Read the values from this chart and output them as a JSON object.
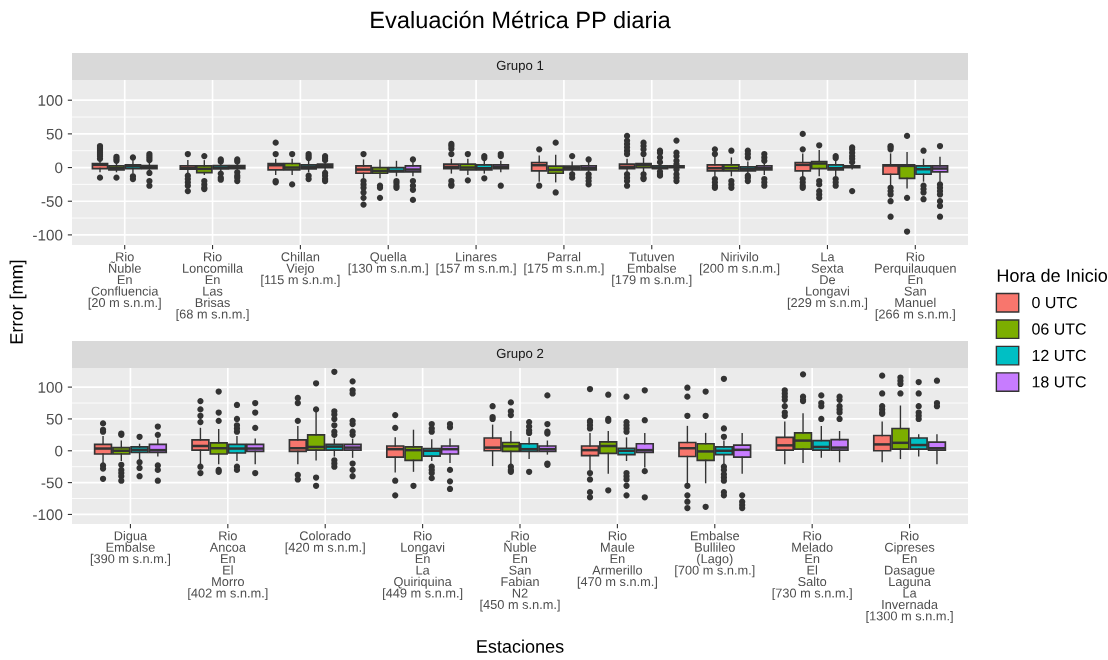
{
  "chart_data": [
    {
      "type": "box",
      "title": "Evaluación Métrica PP diaria",
      "subtitle": "Grupo 1",
      "ylabel": "Error [mm]",
      "legend_title": "Hora de Inicio",
      "legend": "right",
      "grid": true,
      "ylim": [
        -115,
        130
      ],
      "yticks": [
        -100,
        -50,
        0,
        50,
        100
      ],
      "categories": [
        "Rio\nÑuble\nEn\nConfluencia\n[20 m s.n.m.]",
        "Rio\nLoncomilla\nEn\nLas\nBrisas\n[68 m s.n.m.]",
        "Chillan\nViejo\n[115 m s.n.m.]",
        "Quella\n[130 m s.n.m.]",
        "Linares\n[157 m s.n.m.]",
        "Parral\n[175 m s.n.m.]",
        "Tutuven\nEmbalse\n[179 m s.n.m.]",
        "Nirivilo\n[200 m s.n.m.]",
        "La\nSexta\nDe\nLongavi\n[229 m s.n.m.]",
        "Rio\nPerquilauquen\nEn\nSan\nManuel\n[266 m s.n.m.]"
      ],
      "series": [
        {
          "name": "0 UTC",
          "color": "#f8766d",
          "boxes": [
            {
              "low": -6,
              "q1": -1.5,
              "median": 4,
              "q3": 6,
              "high": 11,
              "outliers": [
                13,
                17,
                20,
                23,
                26,
                29,
                32,
                -15
              ]
            },
            {
              "low": -7,
              "q1": -2.5,
              "median": -1,
              "q3": 2.5,
              "high": 10,
              "outliers": [
                20,
                -12,
                -17,
                -22,
                -27,
                -35
              ]
            },
            {
              "low": -10,
              "q1": -3.5,
              "median": 3.5,
              "q3": 6,
              "high": 12,
              "outliers": [
                37,
                20,
                -20,
                -22
              ]
            },
            {
              "low": -15,
              "q1": -8.5,
              "median": -3,
              "q3": 2.5,
              "high": 11,
              "outliers": [
                20,
                -20,
                -25,
                -30,
                -37,
                -45,
                -55
              ]
            },
            {
              "low": -8,
              "q1": -1.5,
              "median": 1,
              "q3": 5,
              "high": 12,
              "outliers": [
                35,
                32,
                28,
                20,
                -20,
                -25,
                -27
              ]
            },
            {
              "low": -20,
              "q1": -5,
              "median": 3.5,
              "q3": 7.5,
              "high": 17,
              "outliers": [
                27,
                -27
              ]
            },
            {
              "low": -6,
              "q1": -1.5,
              "median": 1,
              "q3": 5,
              "high": 12,
              "outliers": [
                47,
                40,
                35,
                30,
                25,
                20,
                -10,
                -15,
                -20,
                -27
              ]
            },
            {
              "low": -12,
              "q1": -5,
              "median": -1,
              "q3": 4,
              "high": 16,
              "outliers": [
                27,
                20,
                -17,
                -22,
                -27,
                -30
              ]
            },
            {
              "low": -14,
              "q1": -5,
              "median": 4,
              "q3": 7.5,
              "high": 20,
              "outliers": [
                50,
                27,
                -17,
                -22,
                -27,
                -30
              ]
            },
            {
              "low": -27,
              "q1": -10,
              "median": 3,
              "q3": 4,
              "high": 20,
              "outliers": [
                32,
                30,
                27,
                -30,
                -35,
                -40,
                -50,
                -73
              ]
            }
          ]
        },
        {
          "name": "06 UTC",
          "color": "#7cae00",
          "boxes": [
            {
              "low": -6,
              "q1": -3.5,
              "median": -1,
              "q3": 2.5,
              "high": 6,
              "outliers": [
                10,
                13,
                16,
                -15
              ]
            },
            {
              "low": -10,
              "q1": -7.5,
              "median": -2,
              "q3": 2.5,
              "high": 10,
              "outliers": [
                17,
                -20,
                -25,
                -30,
                -32
              ]
            },
            {
              "low": -10,
              "q1": -3.5,
              "median": 0,
              "q3": 6,
              "high": 12,
              "outliers": [
                20,
                -25
              ]
            },
            {
              "low": -15,
              "q1": -8.5,
              "median": -5,
              "q3": 0,
              "high": 11,
              "outliers": [
                -27,
                -30,
                -45
              ]
            },
            {
              "low": -10,
              "q1": -3.5,
              "median": 0,
              "q3": 5,
              "high": 12,
              "outliers": [
                20,
                -19
              ]
            },
            {
              "low": -21,
              "q1": -8.5,
              "median": -3.5,
              "q3": 2,
              "high": 18,
              "outliers": [
                37,
                -37
              ]
            },
            {
              "low": -6,
              "q1": 0,
              "median": 3.5,
              "q3": 6,
              "high": 14,
              "outliers": [
                37,
                32,
                27,
                20,
                -10,
                -15,
                -17
              ]
            },
            {
              "low": -12,
              "q1": -5,
              "median": -1,
              "q3": 4,
              "high": 14,
              "outliers": [
                25,
                -20,
                -25,
                -30
              ]
            },
            {
              "low": -12,
              "q1": -1.5,
              "median": 6,
              "q3": 9,
              "high": 25,
              "outliers": [
                33,
                -20,
                -25,
                -35,
                -40,
                -45
              ]
            },
            {
              "low": -30,
              "q1": -16,
              "median": 2.5,
              "q3": 4,
              "high": 22,
              "outliers": [
                47,
                -45,
                -95
              ]
            }
          ]
        },
        {
          "name": "12 UTC",
          "color": "#00bfc4",
          "boxes": [
            {
              "low": -8,
              "q1": -1.5,
              "median": 2,
              "q3": 4,
              "high": 10,
              "outliers": [
                15,
                -13,
                -17
              ]
            },
            {
              "low": -6,
              "q1": -2,
              "median": 0,
              "q3": 3,
              "high": 6,
              "outliers": [
                12,
                9,
                -9,
                -15,
                -18
              ]
            },
            {
              "low": -6,
              "q1": -2,
              "median": 1,
              "q3": 4,
              "high": 10,
              "outliers": [
                20,
                17,
                14,
                -12,
                -17
              ]
            },
            {
              "low": -12,
              "q1": -6.5,
              "median": -5,
              "q3": 0,
              "high": 9,
              "outliers": [
                -20,
                -23,
                -27,
                -30
              ]
            },
            {
              "low": -8,
              "q1": -3.5,
              "median": -1,
              "q3": 4,
              "high": 10,
              "outliers": [
                17,
                14,
                -16
              ]
            },
            {
              "low": -7,
              "q1": -3.5,
              "median": -1,
              "q3": 2,
              "high": 8,
              "outliers": [
                17,
                -10,
                -15
              ]
            },
            {
              "low": -4,
              "q1": -1.5,
              "median": 0,
              "q3": 2.5,
              "high": 5,
              "outliers": [
                25,
                22,
                15,
                8,
                -6,
                -10,
                -12
              ]
            },
            {
              "low": -10,
              "q1": -5,
              "median": -2.5,
              "q3": 1,
              "high": 8,
              "outliers": [
                25,
                20,
                15,
                -12,
                -15,
                -20
              ]
            },
            {
              "low": -12,
              "q1": -3.5,
              "median": -1,
              "q3": 4,
              "high": 10,
              "outliers": [
                17,
                14,
                -17,
                -22,
                -27
              ]
            },
            {
              "low": -20,
              "q1": -10,
              "median": -2.5,
              "q3": 2.5,
              "high": 12,
              "outliers": [
                25,
                -27,
                -32,
                -37,
                -47
              ]
            }
          ]
        },
        {
          "name": "18 UTC",
          "color": "#c77cff",
          "boxes": [
            {
              "low": -4,
              "q1": -1.5,
              "median": 1,
              "q3": 3,
              "high": 6,
              "outliers": [
                20,
                17,
                14,
                11,
                -8,
                -20,
                -27
              ]
            },
            {
              "low": -4,
              "q1": -1.5,
              "median": 1,
              "q3": 3,
              "high": 6,
              "outliers": [
                12,
                9,
                -7,
                -12,
                -15,
                -20
              ]
            },
            {
              "low": -5,
              "q1": 0,
              "median": 2,
              "q3": 5,
              "high": 9,
              "outliers": [
                17,
                14,
                11,
                -8,
                -12,
                -17,
                -20
              ]
            },
            {
              "low": -12,
              "q1": -6.5,
              "median": -3,
              "q3": 2.5,
              "high": 8,
              "outliers": [
                12,
                -20,
                -27,
                -33,
                -48
              ]
            },
            {
              "low": -6,
              "q1": -1.5,
              "median": 1,
              "q3": 4,
              "high": 9,
              "outliers": [
                20,
                17,
                -27
              ]
            },
            {
              "low": -8,
              "q1": -3.5,
              "median": -1,
              "q3": 2.5,
              "high": 8,
              "outliers": [
                12,
                -10,
                -15,
                -20,
                -25
              ]
            },
            {
              "low": -2,
              "q1": 0,
              "median": 1.5,
              "q3": 2.5,
              "high": 3,
              "outliers": [
                40,
                22,
                17,
                10,
                5,
                -3,
                -10,
                -15,
                -20
              ]
            },
            {
              "low": -10,
              "q1": -3.5,
              "median": -1,
              "q3": 2.5,
              "high": 8,
              "outliers": [
                20,
                15,
                10,
                -17,
                -22,
                -27
              ]
            },
            {
              "low": -2,
              "q1": 0,
              "median": 1.5,
              "q3": 2.5,
              "high": 4,
              "outliers": [
                30,
                27,
                22,
                17,
                13,
                8,
                -35
              ]
            },
            {
              "low": -20,
              "q1": -6.5,
              "median": -1.5,
              "q3": 2.5,
              "high": 15,
              "outliers": [
                32,
                -25,
                -30,
                -35,
                -40,
                -50,
                -57,
                -73
              ]
            }
          ]
        }
      ]
    },
    {
      "type": "box",
      "subtitle": "Grupo 2",
      "xlabel": "Estaciones",
      "grid": true,
      "ylim": [
        -115,
        130
      ],
      "yticks": [
        -100,
        -50,
        0,
        50,
        100
      ],
      "categories": [
        "Digua\nEmbalse\n[390 m s.n.m.]",
        "Rio\nAncoa\nEn\nEl\nMorro\n[402 m s.n.m.]",
        "Colorado\n[420 m s.n.m.]",
        "Rio\nLongavi\nEn\nLa\nQuiriquina\n[449 m s.n.m.]",
        "Rio\nÑuble\nEn\nSan\nFabian\nN2\n[450 m s.n.m.]",
        "Rio\nMaule\nEn\nArmerillo\n[470 m s.n.m.]",
        "Embalse\nBullileo\n(Lago)\n[700 m s.n.m.]",
        "Rio\nMelado\nEn\nEl\nSalto\n[730 m s.n.m.]",
        "Rio\nCipreses\nEn\nDasague\nLaguna\nLa\nInvernada\n[1300 m s.n.m.]"
      ],
      "series": [
        {
          "color": "#f8766d",
          "boxes": [
            {
              "low": -18,
              "q1": -5,
              "median": 3.5,
              "q3": 10,
              "high": 22,
              "outliers": [
                43,
                33,
                30,
                -23,
                -28,
                -44
              ]
            },
            {
              "low": -20,
              "q1": 1,
              "median": 7.5,
              "q3": 17,
              "high": 35,
              "outliers": [
                78,
                65,
                55,
                45,
                -25,
                -35
              ]
            },
            {
              "low": -20,
              "q1": -1,
              "median": 4,
              "q3": 17,
              "high": 38,
              "outliers": [
                83,
                75,
                47,
                -38,
                -45
              ]
            },
            {
              "low": -33,
              "q1": -10,
              "median": 2.5,
              "q3": 7.5,
              "high": 20,
              "outliers": [
                56,
                36,
                -47,
                -70
              ]
            },
            {
              "low": -23,
              "q1": 0,
              "median": 5,
              "q3": 20,
              "high": 40,
              "outliers": [
                70,
                53,
                50
              ]
            },
            {
              "low": -30,
              "q1": -7.5,
              "median": 1,
              "q3": 7.5,
              "high": 27,
              "outliers": [
                97,
                47,
                45,
                40,
                35,
                -35,
                -45,
                -65,
                -73
              ]
            },
            {
              "low": -50,
              "q1": -9,
              "median": 4,
              "q3": 13,
              "high": 38,
              "outliers": [
                99,
                85,
                55,
                -55,
                -70,
                -80,
                -90
              ]
            },
            {
              "low": -20,
              "q1": 1,
              "median": 8.5,
              "q3": 21,
              "high": 45,
              "outliers": [
                95,
                90,
                85,
                80,
                70,
                60,
                55
              ]
            },
            {
              "low": -17,
              "q1": 0,
              "median": 10,
              "q3": 24,
              "high": 45,
              "outliers": [
                118,
                90,
                70,
                65,
                60,
                58
              ]
            }
          ]
        },
        {
          "color": "#7cae00",
          "boxes": [
            {
              "low": -15,
              "q1": -5,
              "median": 0,
              "q3": 5,
              "high": 15,
              "outliers": [
                27,
                25,
                -22,
                -30,
                -35,
                -40,
                -47
              ]
            },
            {
              "low": -20,
              "q1": -5,
              "median": 4,
              "q3": 12.5,
              "high": 33,
              "outliers": [
                93,
                60,
                47,
                -30,
                -33
              ]
            },
            {
              "low": -14,
              "q1": 1,
              "median": 6,
              "q3": 25,
              "high": 60,
              "outliers": [
                106,
                65,
                -42,
                -55
              ]
            },
            {
              "low": -32,
              "q1": -15,
              "median": 1,
              "q3": 6,
              "high": 32,
              "outliers": [
                -55
              ]
            },
            {
              "low": -20,
              "q1": -1,
              "median": 7,
              "q3": 13,
              "high": 30,
              "outliers": [
                76,
                62,
                56,
                -25,
                -30,
                -33
              ]
            },
            {
              "low": -35,
              "q1": -4,
              "median": 7.5,
              "q3": 14,
              "high": 30,
              "outliers": [
                88,
                50,
                47,
                -62
              ]
            },
            {
              "low": -50,
              "q1": -15,
              "median": -1,
              "q3": 11,
              "high": 27,
              "outliers": [
                93,
                55,
                -88
              ]
            },
            {
              "low": -18,
              "q1": 2.5,
              "median": 16,
              "q3": 28,
              "high": 58,
              "outliers": [
                120,
                85,
                80,
                78
              ]
            },
            {
              "low": -12,
              "q1": 2.5,
              "median": 12.5,
              "q3": 35,
              "high": 70,
              "outliers": [
                115,
                110,
                105,
                90
              ]
            }
          ]
        },
        {
          "color": "#00bfc4",
          "boxes": [
            {
              "low": -12,
              "q1": -2.5,
              "median": 1.5,
              "q3": 6,
              "high": 10,
              "outliers": [
                22,
                -18,
                -27,
                -40
              ]
            },
            {
              "low": -15,
              "q1": -3.5,
              "median": 3.5,
              "q3": 10,
              "high": 22,
              "outliers": [
                72,
                50,
                40,
                35,
                30,
                -25,
                -30
              ]
            },
            {
              "low": -8,
              "q1": 1,
              "median": 6.5,
              "q3": 10,
              "high": 18,
              "outliers": [
                124,
                62,
                57,
                50,
                40,
                30,
                25,
                -15,
                -20,
                -25
              ]
            },
            {
              "low": -15,
              "q1": -8.5,
              "median": 0,
              "q3": 3.5,
              "high": 17,
              "outliers": [
                42,
                35,
                30,
                -25,
                -30,
                -35,
                -43
              ]
            },
            {
              "low": -12,
              "q1": -1,
              "median": 2.5,
              "q3": 11,
              "high": 20,
              "outliers": [
                45,
                38,
                32,
                28,
                -33
              ]
            },
            {
              "low": -15,
              "q1": -6,
              "median": 0,
              "q3": 4,
              "high": 20,
              "outliers": [
                85,
                45,
                40,
                35,
                30,
                -35,
                -40,
                -45,
                -55,
                -70
              ]
            },
            {
              "low": -20,
              "q1": -6,
              "median": 0,
              "q3": 6,
              "high": 15,
              "outliers": [
                113,
                35,
                22,
                -25,
                -30,
                -37,
                -42,
                -47,
                -65,
                -70
              ]
            },
            {
              "low": -10,
              "q1": 1,
              "median": 6,
              "q3": 16,
              "high": 38,
              "outliers": [
                87,
                75,
                70,
                50
              ]
            },
            {
              "low": -8,
              "q1": 2.5,
              "median": 9,
              "q3": 20,
              "high": 25,
              "outliers": [
                108,
                90,
                70,
                60,
                55,
                50
              ]
            }
          ]
        },
        {
          "color": "#c77cff",
          "boxes": [
            {
              "low": -8,
              "q1": -2.5,
              "median": 1,
              "q3": 10,
              "high": 18,
              "outliers": [
                38,
                25,
                -23,
                -30,
                -47
              ]
            },
            {
              "low": -20,
              "q1": -1,
              "median": 3.5,
              "q3": 10,
              "high": 18,
              "outliers": [
                75,
                60,
                36,
                -35
              ]
            },
            {
              "low": -10,
              "q1": 1,
              "median": 5,
              "q3": 10,
              "high": 18,
              "outliers": [
                109,
                95,
                90,
                47,
                42,
                30,
                25,
                -20,
                -30,
                -40
              ]
            },
            {
              "low": -18,
              "q1": -5,
              "median": 2.5,
              "q3": 7.5,
              "high": 18,
              "outliers": [
                42,
                37,
                -30,
                -48,
                -60
              ]
            },
            {
              "low": -5,
              "q1": -1,
              "median": 2.5,
              "q3": 7.5,
              "high": 15,
              "outliers": [
                87,
                42,
                30,
                27,
                -20,
                -22
              ]
            },
            {
              "low": -25,
              "q1": -2.5,
              "median": 1,
              "q3": 11,
              "high": 27,
              "outliers": [
                95,
                48,
                -32,
                -73
              ]
            },
            {
              "low": -35,
              "q1": -10,
              "median": 1.5,
              "q3": 9,
              "high": 27,
              "outliers": [
                -70,
                -80,
                -85,
                -90
              ]
            },
            {
              "low": -17,
              "q1": 1,
              "median": 5,
              "q3": 17.5,
              "high": 30,
              "outliers": [
                85,
                80,
                70,
                65,
                60,
                50
              ]
            },
            {
              "low": -20,
              "q1": 1,
              "median": 4,
              "q3": 13.5,
              "high": 25,
              "outliers": [
                110,
                75,
                70
              ]
            }
          ]
        }
      ]
    }
  ]
}
